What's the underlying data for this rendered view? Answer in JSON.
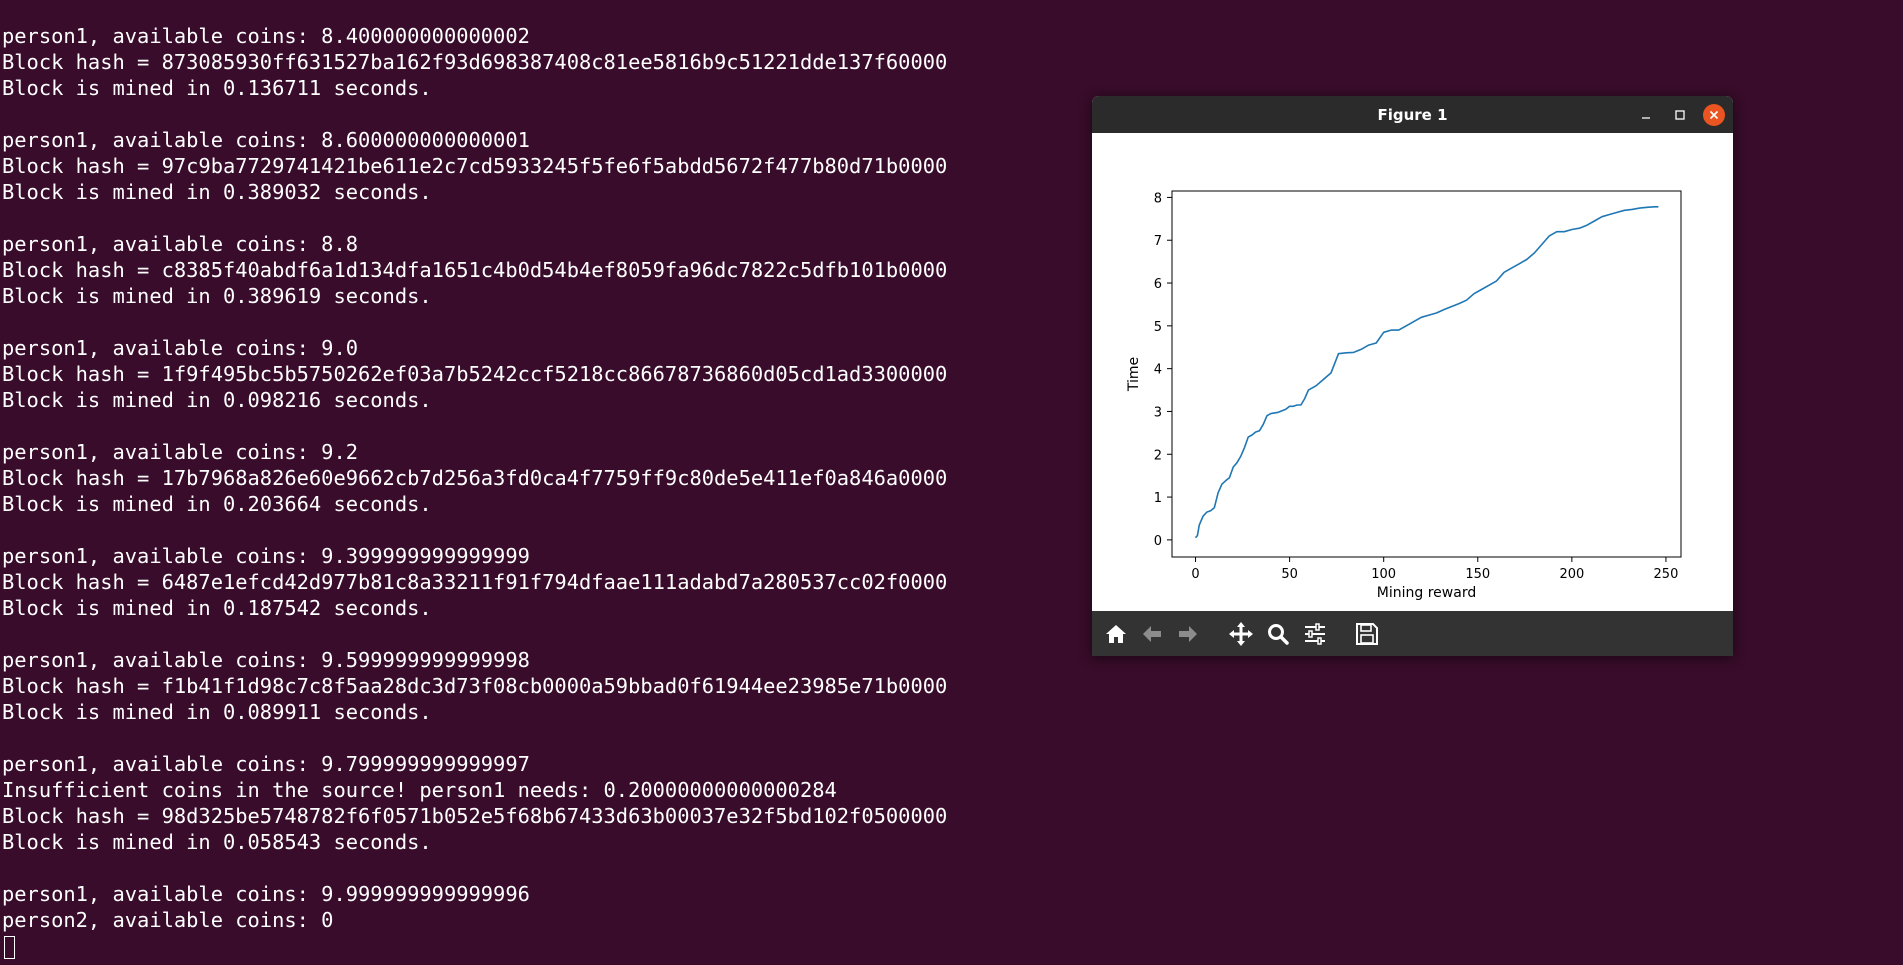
{
  "terminal": {
    "lines": [
      "person1, available coins: 8.400000000000002",
      "Block hash = 873085930ff631527ba162f93d698387408c81ee5816b9c51221dde137f60000",
      "Block is mined in 0.136711 seconds.",
      "",
      "person1, available coins: 8.600000000000001",
      "Block hash = 97c9ba7729741421be611e2c7cd5933245f5fe6f5abdd5672f477b80d71b0000",
      "Block is mined in 0.389032 seconds.",
      "",
      "person1, available coins: 8.8",
      "Block hash = c8385f40abdf6a1d134dfa1651c4b0d54b4ef8059fa96dc7822c5dfb101b0000",
      "Block is mined in 0.389619 seconds.",
      "",
      "person1, available coins: 9.0",
      "Block hash = 1f9f495bc5b5750262ef03a7b5242ccf5218cc86678736860d05cd1ad3300000",
      "Block is mined in 0.098216 seconds.",
      "",
      "person1, available coins: 9.2",
      "Block hash = 17b7968a826e60e9662cb7d256a3fd0ca4f7759ff9c80de5e411ef0a846a0000",
      "Block is mined in 0.203664 seconds.",
      "",
      "person1, available coins: 9.399999999999999",
      "Block hash = 6487e1efcd42d977b81c8a33211f91f794dfaae111adabd7a280537cc02f0000",
      "Block is mined in 0.187542 seconds.",
      "",
      "person1, available coins: 9.599999999999998",
      "Block hash = f1b41f1d98c7c8f5aa28dc3d73f08cb0000a59bbad0f61944ee23985e71b0000",
      "Block is mined in 0.089911 seconds.",
      "",
      "person1, available coins: 9.799999999999997",
      "Insufficient coins in the source! person1 needs: 0.20000000000000284",
      "Block hash = 98d325be5748782f6f0571b052e5f68b67433d63b00037e32f5bd102f0500000",
      "Block is mined in 0.058543 seconds.",
      "",
      "person1, available coins: 9.999999999999996",
      "person2, available coins: 0"
    ]
  },
  "figure_window": {
    "title": "Figure 1",
    "toolbar_icons": [
      "home-icon",
      "back-arrow-icon",
      "forward-arrow-icon",
      "pan-icon",
      "zoom-icon",
      "configure-subplots-icon",
      "save-icon"
    ],
    "colors": {
      "titlebar": "#2b2b2b",
      "toolbar": "#333333",
      "close_button": "#e95420",
      "line": "#1f77b4"
    }
  },
  "chart_data": {
    "type": "line",
    "title": "",
    "xlabel": "Mining reward",
    "ylabel": "Time",
    "xlim": [
      -12.5,
      258
    ],
    "ylim": [
      -0.4,
      8.15
    ],
    "xticks": [
      0,
      50,
      100,
      150,
      200,
      250
    ],
    "yticks": [
      0,
      1,
      2,
      3,
      4,
      5,
      6,
      7,
      8
    ],
    "grid": false,
    "series": [
      {
        "x": [
          0,
          1,
          2,
          4,
          6,
          8,
          10,
          12,
          14,
          16,
          18,
          20,
          22,
          24,
          26,
          28,
          30,
          32,
          34,
          36,
          38,
          40,
          44,
          48,
          50,
          52,
          54,
          56,
          58,
          60,
          64,
          68,
          72,
          76,
          80,
          84,
          88,
          92,
          96,
          100,
          104,
          108,
          112,
          116,
          120,
          124,
          128,
          132,
          136,
          140,
          144,
          148,
          152,
          156,
          160,
          164,
          168,
          172,
          176,
          180,
          184,
          188,
          192,
          196,
          200,
          204,
          208,
          212,
          216,
          220,
          224,
          228,
          232,
          236,
          240,
          244,
          246
        ],
        "y": [
          0.05,
          0.1,
          0.35,
          0.55,
          0.65,
          0.68,
          0.75,
          1.1,
          1.3,
          1.38,
          1.45,
          1.7,
          1.8,
          1.95,
          2.15,
          2.4,
          2.45,
          2.52,
          2.55,
          2.7,
          2.9,
          2.95,
          2.98,
          3.05,
          3.12,
          3.12,
          3.15,
          3.15,
          3.3,
          3.5,
          3.6,
          3.75,
          3.9,
          4.35,
          4.37,
          4.38,
          4.45,
          4.55,
          4.6,
          4.85,
          4.9,
          4.9,
          5.0,
          5.1,
          5.2,
          5.25,
          5.3,
          5.38,
          5.45,
          5.52,
          5.6,
          5.75,
          5.85,
          5.95,
          6.05,
          6.25,
          6.35,
          6.45,
          6.55,
          6.7,
          6.9,
          7.1,
          7.2,
          7.2,
          7.25,
          7.28,
          7.35,
          7.45,
          7.55,
          7.6,
          7.65,
          7.7,
          7.72,
          7.75,
          7.77,
          7.78,
          7.78
        ]
      }
    ]
  }
}
